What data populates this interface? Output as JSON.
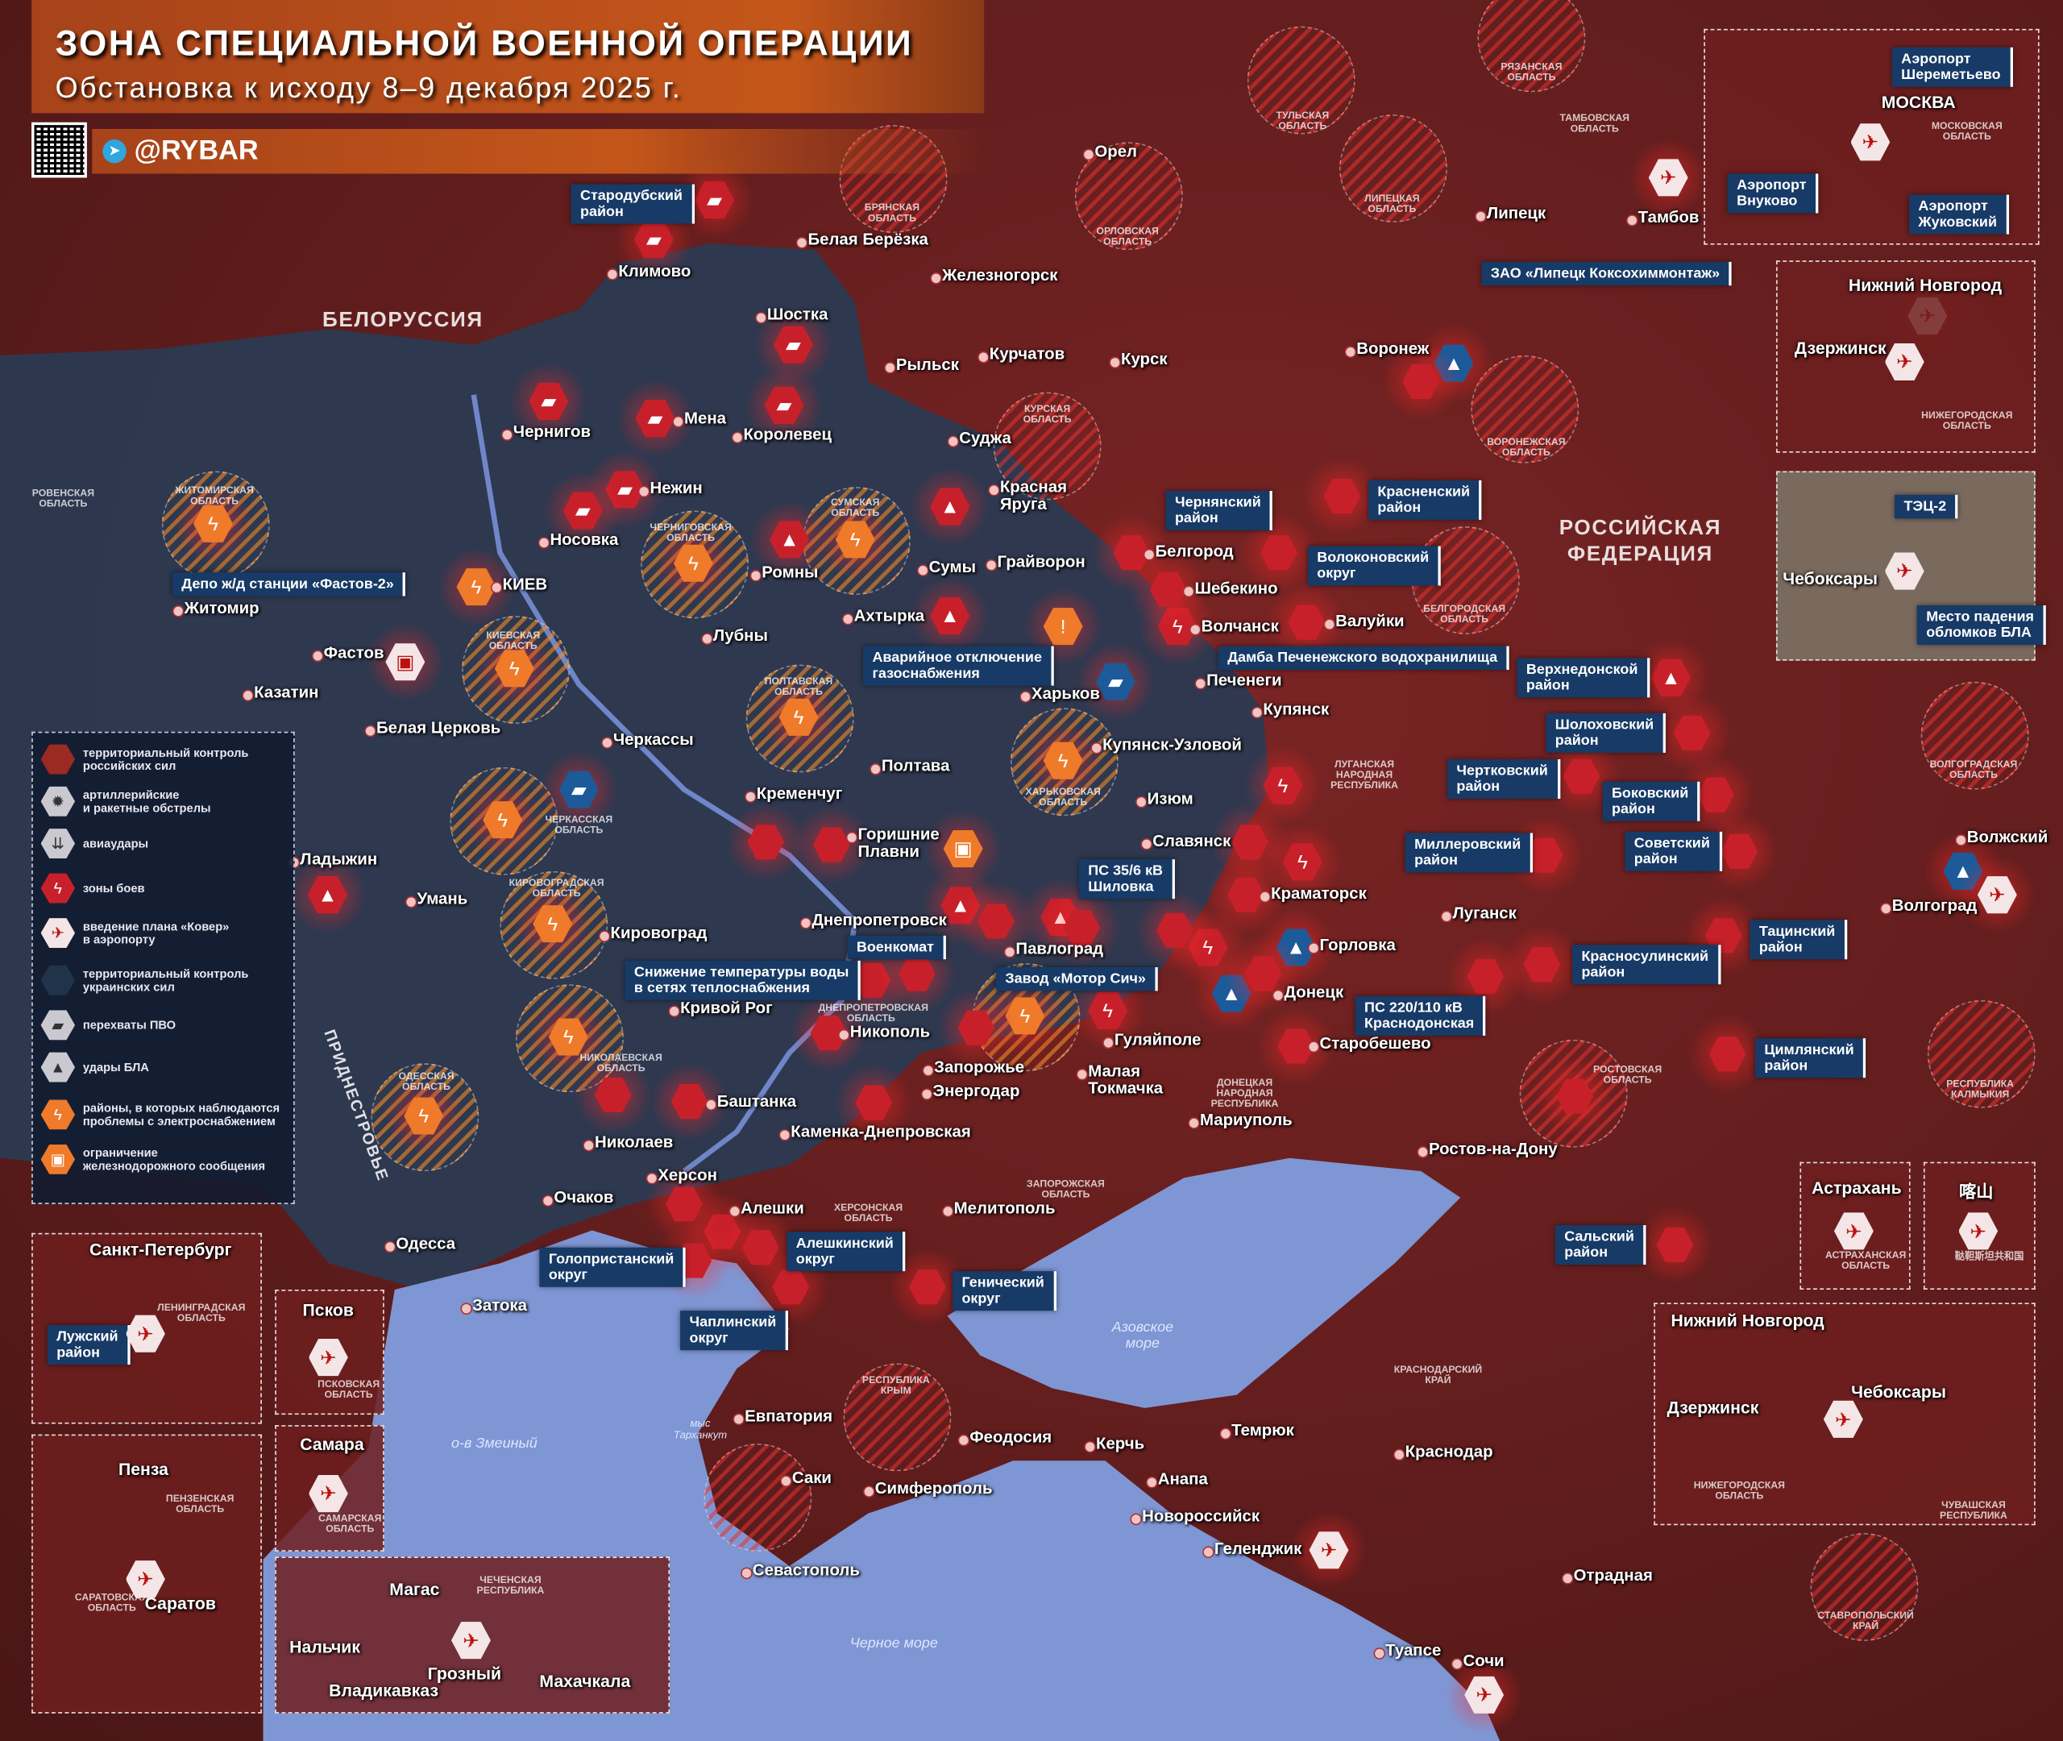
{
  "header": {
    "title": "ЗОНА СПЕЦИАЛЬНОЙ ВОЕННОЙ ОПЕРАЦИИ",
    "subtitle": "Обстановка к исходу 8–9 декабря 2025 г.",
    "brand": "@RYBAR",
    "telegram_icon": "telegram-icon",
    "qr_icon": "qr-code-icon"
  },
  "colors": {
    "russian_control": "#6a1e1e",
    "ukrainian_control": "#2b3a52",
    "sea": "#7f96d4",
    "accent_red": "#c8202a",
    "accent_orange": "#ef7a2a",
    "callout": "#173a66"
  },
  "legend": [
    {
      "icon": "territory-red-hex",
      "text": "территориальный контроль\nроссийских сил"
    },
    {
      "icon": "artillery-explosion-icon",
      "text": "артиллерийские\nи ракетные обстрелы"
    },
    {
      "icon": "airstrike-bombs-icon",
      "text": "авиаудары"
    },
    {
      "icon": "lightning-icon",
      "text": "зоны боев"
    },
    {
      "icon": "airplane-cross-icon",
      "text": "введение плана «Ковер»\nв аэропорту"
    },
    {
      "icon": "territory-blue-hex",
      "text": "территориальный контроль\nукраинских сил"
    },
    {
      "icon": "air-defense-launcher-icon",
      "text": "перехваты ПВО"
    },
    {
      "icon": "drone-icon",
      "text": "удары БЛА"
    },
    {
      "icon": "power-outage-icon",
      "text": "районы, в которых наблюдаются\nпроблемы с электроснабжением"
    },
    {
      "icon": "train-cross-icon",
      "text": "ограничение\nжелезнодорожного сообщения"
    }
  ],
  "big_labels": [
    "БЕЛОРУССИЯ",
    "РОССИЙСКАЯ\nФЕДЕРАЦИЯ",
    "ПРИДНЕСТРОВЬЕ"
  ],
  "water": [
    "Азовское\nморе",
    "Черное море",
    "о-в Змеиный",
    "мыс\nТарханкут"
  ],
  "cities": [
    "Климово",
    "Белая Берёзка",
    "Орел",
    "Железногорск",
    "Шостка",
    "Рыльск",
    "Курчатов",
    "Курск",
    "Чернигов",
    "Мена",
    "Королевец",
    "Нежин",
    "Носовка",
    "Суджа",
    "Красная\nЯруга",
    "Ромны",
    "Сумы",
    "Грайворон",
    "Белгород",
    "Шебекино",
    "Волчанск",
    "Валуйки",
    "Ахтырка",
    "Лубны",
    "КИЕВ",
    "Житомир",
    "Фастов",
    "Казатин",
    "Белая Церковь",
    "Черкассы",
    "Полтава",
    "Харьков",
    "Печенеги",
    "Купянск",
    "Купянск-Узловой",
    "Изюм",
    "Славянск",
    "Краматорск",
    "Кременчуг",
    "Горишние\nПлавни",
    "Ладыжин",
    "Умань",
    "Кировоград",
    "Днепропетровск",
    "Павлоград",
    "Горловка",
    "Донецк",
    "Старобешево",
    "Луганск",
    "Кривой Рог",
    "Никополь",
    "Запорожье",
    "Энергодар",
    "Гуляйполе",
    "Малая\nТокмачка",
    "Мариуполь",
    "Баштанка",
    "Николаев",
    "Каменка-Днепровская",
    "Херсон",
    "Очаков",
    "Алешки",
    "Одесса",
    "Затока",
    "Мелитополь",
    "Ростов-на-Дону",
    "Евпатория",
    "Саки",
    "Симферополь",
    "Феодосия",
    "Керчь",
    "Темрюк",
    "Анапа",
    "Новороссийск",
    "Краснодар",
    "Геленджик",
    "Туапсе",
    "Сочи",
    "Отрадная",
    "Воронеж",
    "Липецк",
    "Тамбов",
    "Волгоград",
    "Волжский",
    "Севастополь"
  ],
  "callouts": [
    "Стародубский\nрайон",
    "Депо ж/д станции «Фастов-2»",
    "ЗАО «Липецк Коксохиммонтаж»",
    "Чернянский\nрайон",
    "Красненский\nрайон",
    "Волоконовский\nокруг",
    "Аварийное отключение\nгазоснабжения",
    "Дамба Печенежского водохранилища",
    "Верхнедонской\nрайон",
    "Шолоховский\nрайон",
    "Чертковский\nрайон",
    "Боковский\nрайон",
    "Миллеровский\nрайон",
    "Советский\nрайон",
    "ПС 35/6 кВ\nШиловка",
    "Военкомат",
    "Снижение температуры воды\nв сетях теплоснабжения",
    "Завод «Мотор Сич»",
    "ПС 220/110 кВ\nКраснодонская",
    "Красносулинский\nрайон",
    "Тацинский\nрайон",
    "Цимлянский\nрайон",
    "Сальский\nрайон",
    "Голопристанский\nокруг",
    "Алешкинский\nокруг",
    "Генический\nокруг",
    "Чаплинский\nокруг"
  ],
  "regions": [
    "БРЯНСКАЯ\nОБЛАСТЬ",
    "ОРЛОВСКАЯ\nОБЛАСТЬ",
    "ТУЛЬСКАЯ\nОБЛАСТЬ",
    "РЯЗАНСКАЯ\nОБЛАСТЬ",
    "ЛИПЕЦКАЯ\nОБЛАСТЬ",
    "ТАМБОВСКАЯ\nОБЛАСТЬ",
    "КУРСКАЯ\nОБЛАСТЬ",
    "ВОРОНЕЖСКАЯ\nОБЛАСТЬ",
    "БЕЛГОРОДСКАЯ\nОБЛАСТЬ",
    "ЖИТОМИРСКАЯ\nОБЛАСТЬ",
    "ЧЕРНИГОВСКАЯ\nОБЛАСТЬ",
    "СУМСКАЯ\nОБЛАСТЬ",
    "КИЕВСКАЯ\nОБЛАСТЬ",
    "ПОЛТАВСКАЯ\nОБЛАСТЬ",
    "ХАРЬКОВСКАЯ\nОБЛАСТЬ",
    "ЧЕРКАССКАЯ\nОБЛАСТЬ",
    "КИРОВОГРАДСКАЯ\nОБЛАСТЬ",
    "ДНЕПРОПЕТРОВСКАЯ\nОБЛАСТЬ",
    "НИКОЛАЕВСКАЯ\nОБЛАСТЬ",
    "ОДЕССКАЯ\nОБЛАСТЬ",
    "ХЕРСОНСКАЯ\nОБЛАСТЬ",
    "ЗАПОРОЖСКАЯ\nОБЛАСТЬ",
    "ДОНЕЦКАЯ\nНАРОДНАЯ\nРЕСПУБЛИКА",
    "ЛУГАНСКАЯ\nНАРОДНАЯ\nРЕСПУБЛИКА",
    "РОСТОВСКАЯ\nОБЛАСТЬ",
    "ВОЛГОГРАДСКАЯ\nОБЛАСТЬ",
    "РЕСПУБЛИКА\nКАЛМЫКИЯ",
    "РЕСПУБЛИКА\nКРЫМ",
    "КРАСНОДАРСКИЙ\nКРАЙ",
    "СТАВРОПОЛЬСКИЙ\nКРАЙ",
    "РОВЕНСКАЯ\nОБЛАСТЬ"
  ],
  "markers": [
    {
      "type": "air-defense",
      "tone": "red"
    },
    {
      "type": "air-defense",
      "tone": "red"
    },
    {
      "type": "air-defense",
      "tone": "red"
    },
    {
      "type": "air-defense",
      "tone": "red"
    },
    {
      "type": "air-defense",
      "tone": "red"
    },
    {
      "type": "air-defense",
      "tone": "red"
    },
    {
      "type": "air-defense",
      "tone": "red"
    },
    {
      "type": "air-defense",
      "tone": "red"
    },
    {
      "type": "drone",
      "tone": "red"
    },
    {
      "type": "drone",
      "tone": "red"
    },
    {
      "type": "drone",
      "tone": "red"
    },
    {
      "type": "drone",
      "tone": "red"
    },
    {
      "type": "drone",
      "tone": "red"
    },
    {
      "type": "drone",
      "tone": "red"
    },
    {
      "type": "drone",
      "tone": "red"
    },
    {
      "type": "power-outage",
      "tone": "orange"
    },
    {
      "type": "power-outage",
      "tone": "orange"
    },
    {
      "type": "power-outage",
      "tone": "orange"
    },
    {
      "type": "power-outage",
      "tone": "orange"
    },
    {
      "type": "power-outage",
      "tone": "orange"
    },
    {
      "type": "power-outage",
      "tone": "orange"
    },
    {
      "type": "power-outage",
      "tone": "orange"
    },
    {
      "type": "power-outage",
      "tone": "orange"
    },
    {
      "type": "power-outage",
      "tone": "orange"
    },
    {
      "type": "power-outage",
      "tone": "orange"
    },
    {
      "type": "power-outage",
      "tone": "orange"
    },
    {
      "type": "power-outage",
      "tone": "orange"
    },
    {
      "type": "combat-zone",
      "tone": "red"
    },
    {
      "type": "combat-zone",
      "tone": "red"
    },
    {
      "type": "combat-zone",
      "tone": "red"
    },
    {
      "type": "combat-zone",
      "tone": "red"
    },
    {
      "type": "combat-zone",
      "tone": "red"
    },
    {
      "type": "air-defense",
      "tone": "blue"
    },
    {
      "type": "air-defense",
      "tone": "blue"
    },
    {
      "type": "drone",
      "tone": "blue"
    },
    {
      "type": "drone",
      "tone": "blue"
    },
    {
      "type": "drone",
      "tone": "blue"
    },
    {
      "type": "drone",
      "tone": "blue"
    },
    {
      "type": "airport-kover",
      "tone": "white"
    },
    {
      "type": "airport-kover",
      "tone": "white"
    },
    {
      "type": "airport-kover",
      "tone": "white"
    },
    {
      "type": "airport-kover",
      "tone": "white"
    },
    {
      "type": "airport-kover",
      "tone": "white"
    },
    {
      "type": "warning",
      "tone": "orange"
    },
    {
      "type": "train",
      "tone": "white"
    },
    {
      "type": "train",
      "tone": "orange"
    }
  ],
  "insets": [
    {
      "labels": [
        "МОСКВА",
        "Аэропорт\nШереметьево",
        "Аэропорт\nВнуково",
        "Аэропорт\nЖуковский",
        "МОСКОВСКАЯ\nОБЛАСТЬ"
      ]
    },
    {
      "labels": [
        "Нижний Новгород",
        "Дзержинск",
        "НИЖЕГОРОДСКАЯ\nОБЛАСТЬ"
      ]
    },
    {
      "labels": [
        "Чебоксары",
        "ТЭЦ-2",
        "Место падения\nобломков БЛА"
      ]
    },
    {
      "labels": [
        "Санкт-Петербург",
        "Лужский\nрайон",
        "ЛЕНИНГРАДСКАЯ\nОБЛАСТЬ"
      ]
    },
    {
      "labels": [
        "Псков",
        "ПСКОВСКАЯ\nОБЛАСТЬ"
      ]
    },
    {
      "labels": [
        "Пенза",
        "ПЕНЗЕНСКАЯ\nОБЛАСТЬ",
        "Саратов",
        "САРАТОВСКАЯ\nОБЛАСТЬ"
      ]
    },
    {
      "labels": [
        "Самара",
        "САМАРСКАЯ\nОБЛАСТЬ"
      ]
    },
    {
      "labels": [
        "Магас",
        "Нальчик",
        "Владикавказ",
        "Грозный",
        "Махачкала",
        "ЧЕЧЕНСКАЯ\nРЕСПУБЛИКА"
      ]
    },
    {
      "labels": [
        "Астрахань",
        "АСТРАХАНСКАЯ\nОБЛАСТЬ"
      ]
    },
    {
      "labels": [
        "喀山",
        "鞑靼斯坦共和国"
      ]
    },
    {
      "labels": [
        "Нижний Новгород",
        "Дзержинск",
        "Чебоксары",
        "НИЖЕГОРОДСКАЯ\nОБЛАСТЬ",
        "ЧУВАШСКАЯ\nРЕСПУБЛИКА"
      ]
    }
  ]
}
